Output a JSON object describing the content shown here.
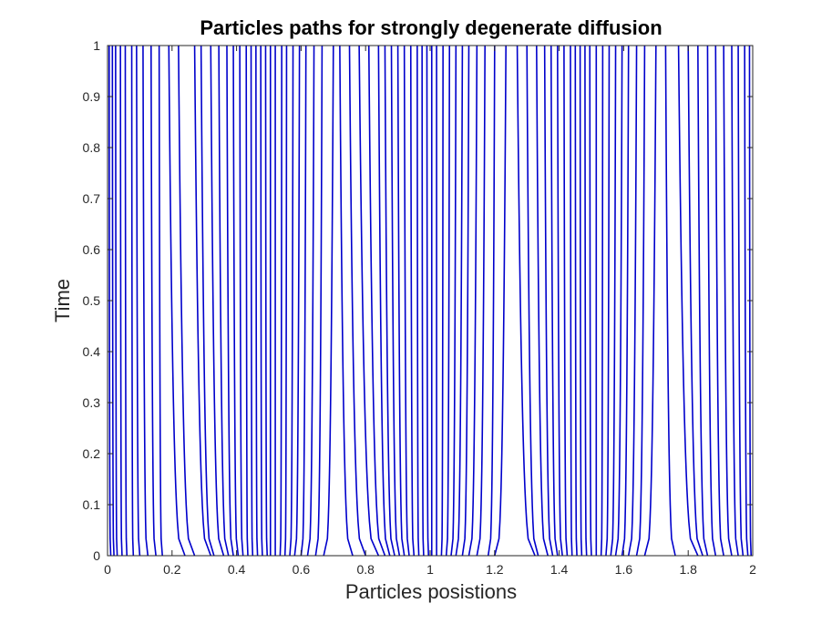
{
  "chart_data": {
    "type": "line",
    "title": "Particles paths for strongly degenerate diffusion",
    "xlabel": "Particles posistions",
    "ylabel": "Time",
    "xlim": [
      0,
      2
    ],
    "ylim": [
      0,
      1
    ],
    "xticks": [
      "0",
      "0.2",
      "0.4",
      "0.6",
      "0.8",
      "1",
      "1.2",
      "1.4",
      "1.6",
      "1.8",
      "2"
    ],
    "yticks": [
      "0",
      "0.1",
      "0.2",
      "0.3",
      "0.4",
      "0.5",
      "0.6",
      "0.7",
      "0.8",
      "0.9",
      "1"
    ],
    "grid": false,
    "line_color": "#0000cc",
    "series": [
      {
        "x0": 0.01,
        "x1": 0.005
      },
      {
        "x0": 0.02,
        "x1": 0.015
      },
      {
        "x0": 0.03,
        "x1": 0.025
      },
      {
        "x0": 0.045,
        "x1": 0.04
      },
      {
        "x0": 0.06,
        "x1": 0.055
      },
      {
        "x0": 0.08,
        "x1": 0.075
      },
      {
        "x0": 0.1,
        "x1": 0.09
      },
      {
        "x0": 0.125,
        "x1": 0.11
      },
      {
        "x0": 0.15,
        "x1": 0.135
      },
      {
        "x0": 0.17,
        "x1": 0.16
      },
      {
        "x0": 0.24,
        "x1": 0.19
      },
      {
        "x0": 0.27,
        "x1": 0.22
      },
      {
        "x0": 0.32,
        "x1": 0.27
      },
      {
        "x0": 0.33,
        "x1": 0.29
      },
      {
        "x0": 0.36,
        "x1": 0.32
      },
      {
        "x0": 0.375,
        "x1": 0.345
      },
      {
        "x0": 0.39,
        "x1": 0.37
      },
      {
        "x0": 0.405,
        "x1": 0.39
      },
      {
        "x0": 0.42,
        "x1": 0.41
      },
      {
        "x0": 0.435,
        "x1": 0.43
      },
      {
        "x0": 0.45,
        "x1": 0.445
      },
      {
        "x0": 0.465,
        "x1": 0.46
      },
      {
        "x0": 0.48,
        "x1": 0.475
      },
      {
        "x0": 0.495,
        "x1": 0.49
      },
      {
        "x0": 0.505,
        "x1": 0.505
      },
      {
        "x0": 0.52,
        "x1": 0.52
      },
      {
        "x0": 0.535,
        "x1": 0.54
      },
      {
        "x0": 0.55,
        "x1": 0.555
      },
      {
        "x0": 0.565,
        "x1": 0.575
      },
      {
        "x0": 0.58,
        "x1": 0.595
      },
      {
        "x0": 0.6,
        "x1": 0.615
      },
      {
        "x0": 0.62,
        "x1": 0.64
      },
      {
        "x0": 0.645,
        "x1": 0.665
      },
      {
        "x0": 0.67,
        "x1": 0.7
      },
      {
        "x0": 0.76,
        "x1": 0.72
      },
      {
        "x0": 0.8,
        "x1": 0.75
      },
      {
        "x0": 0.84,
        "x1": 0.78
      },
      {
        "x0": 0.86,
        "x1": 0.81
      },
      {
        "x0": 0.875,
        "x1": 0.84
      },
      {
        "x0": 0.89,
        "x1": 0.86
      },
      {
        "x0": 0.905,
        "x1": 0.88
      },
      {
        "x0": 0.92,
        "x1": 0.9
      },
      {
        "x0": 0.935,
        "x1": 0.92
      },
      {
        "x0": 0.95,
        "x1": 0.94
      },
      {
        "x0": 0.965,
        "x1": 0.96
      },
      {
        "x0": 0.98,
        "x1": 0.975
      },
      {
        "x0": 0.995,
        "x1": 0.99
      },
      {
        "x0": 1.005,
        "x1": 1.005
      },
      {
        "x0": 1.02,
        "x1": 1.02
      },
      {
        "x0": 1.035,
        "x1": 1.04
      },
      {
        "x0": 1.05,
        "x1": 1.06
      },
      {
        "x0": 1.065,
        "x1": 1.08
      },
      {
        "x0": 1.08,
        "x1": 1.1
      },
      {
        "x0": 1.1,
        "x1": 1.12
      },
      {
        "x0": 1.12,
        "x1": 1.145
      },
      {
        "x0": 1.145,
        "x1": 1.17
      },
      {
        "x0": 1.18,
        "x1": 1.2
      },
      {
        "x0": 1.2,
        "x1": 1.235
      },
      {
        "x0": 1.325,
        "x1": 1.27
      },
      {
        "x0": 1.335,
        "x1": 1.3
      },
      {
        "x0": 1.365,
        "x1": 1.33
      },
      {
        "x0": 1.38,
        "x1": 1.355
      },
      {
        "x0": 1.395,
        "x1": 1.375
      },
      {
        "x0": 1.41,
        "x1": 1.395
      },
      {
        "x0": 1.425,
        "x1": 1.415
      },
      {
        "x0": 1.44,
        "x1": 1.435
      },
      {
        "x0": 1.455,
        "x1": 1.45
      },
      {
        "x0": 1.47,
        "x1": 1.465
      },
      {
        "x0": 1.485,
        "x1": 1.48
      },
      {
        "x0": 1.5,
        "x1": 1.495
      },
      {
        "x0": 1.515,
        "x1": 1.515
      },
      {
        "x0": 1.53,
        "x1": 1.535
      },
      {
        "x0": 1.545,
        "x1": 1.555
      },
      {
        "x0": 1.56,
        "x1": 1.575
      },
      {
        "x0": 1.575,
        "x1": 1.595
      },
      {
        "x0": 1.595,
        "x1": 1.615
      },
      {
        "x0": 1.615,
        "x1": 1.64
      },
      {
        "x0": 1.64,
        "x1": 1.665
      },
      {
        "x0": 1.665,
        "x1": 1.7
      },
      {
        "x0": 1.76,
        "x1": 1.73
      },
      {
        "x0": 1.83,
        "x1": 1.77
      },
      {
        "x0": 1.845,
        "x1": 1.8
      },
      {
        "x0": 1.86,
        "x1": 1.83
      },
      {
        "x0": 1.885,
        "x1": 1.86
      },
      {
        "x0": 1.91,
        "x1": 1.885
      },
      {
        "x0": 1.935,
        "x1": 1.91
      },
      {
        "x0": 1.955,
        "x1": 1.935
      },
      {
        "x0": 1.97,
        "x1": 1.955
      },
      {
        "x0": 1.985,
        "x1": 1.975
      },
      {
        "x0": 1.995,
        "x1": 1.99
      }
    ]
  }
}
